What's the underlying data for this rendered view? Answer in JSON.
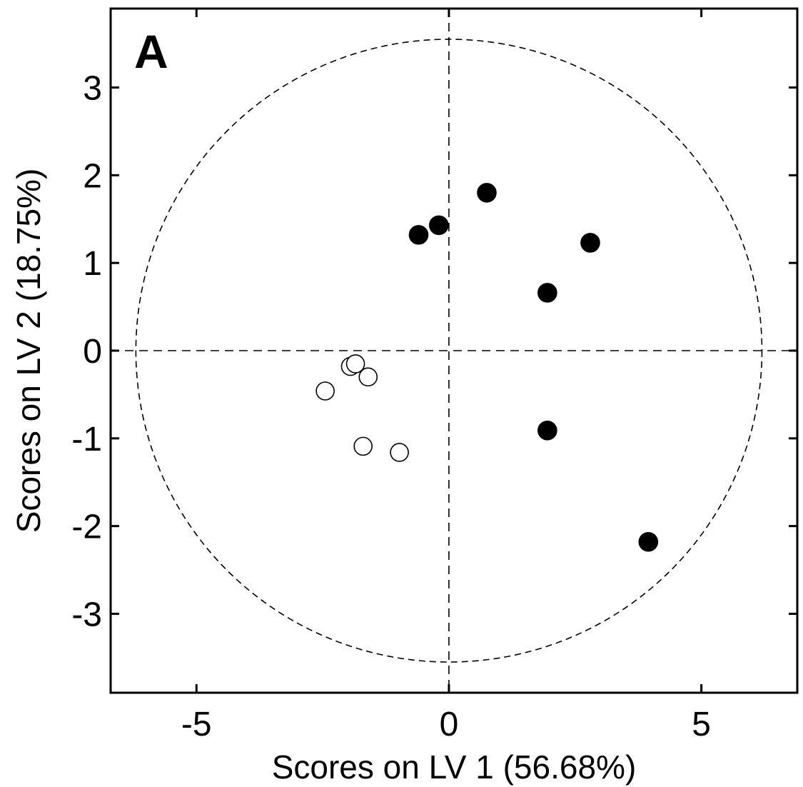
{
  "chart_data": {
    "type": "scatter",
    "panel_label": "A",
    "xlabel": "Scores on LV 1 (56.68%)",
    "ylabel": "Scores on LV 2 (18.75%)",
    "xlim": [
      -6.7,
      6.9
    ],
    "ylim": [
      -3.9,
      3.9
    ],
    "xticks": [
      -5,
      0,
      5
    ],
    "yticks": [
      -3,
      -2,
      -1,
      0,
      1,
      2,
      3
    ],
    "grid": false,
    "reference_lines": {
      "x": 0,
      "y": 0,
      "style": "dashed"
    },
    "confidence_ellipse": {
      "center": [
        0,
        0
      ],
      "rx": 6.2,
      "ry": 3.55,
      "style": "dashed"
    },
    "series": [
      {
        "marker": "filled-circle",
        "color": "#000000",
        "points": [
          [
            -0.6,
            1.32
          ],
          [
            -0.2,
            1.43
          ],
          [
            0.75,
            1.8
          ],
          [
            2.8,
            1.23
          ],
          [
            1.95,
            0.66
          ],
          [
            1.95,
            -0.91
          ],
          [
            3.95,
            -2.18
          ]
        ]
      },
      {
        "marker": "open-circle",
        "color": "#000000",
        "points": [
          [
            -1.95,
            -0.18
          ],
          [
            -1.85,
            -0.15
          ],
          [
            -1.6,
            -0.3
          ],
          [
            -2.45,
            -0.46
          ],
          [
            -1.7,
            -1.09
          ],
          [
            -0.98,
            -1.16
          ]
        ]
      }
    ]
  }
}
